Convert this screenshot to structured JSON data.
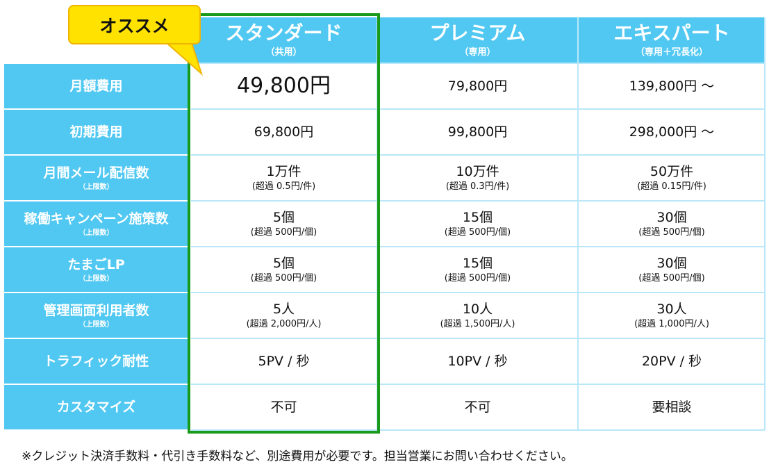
{
  "badge": {
    "label": "オススメ"
  },
  "plans": [
    {
      "name": "スタンダード",
      "sub": "（共用）"
    },
    {
      "name": "プレミアム",
      "sub": "（専用）"
    },
    {
      "name": "エキスパート",
      "sub": "（専用＋冗長化）"
    }
  ],
  "rows": [
    {
      "label": "月額費用",
      "sub": "",
      "cells": [
        {
          "main": "49,800円",
          "sub": ""
        },
        {
          "main": "79,800円",
          "sub": ""
        },
        {
          "main": "139,800円",
          "sub": "",
          "suffix": "～"
        }
      ]
    },
    {
      "label": "初期費用",
      "sub": "",
      "cells": [
        {
          "main": "69,800円",
          "sub": ""
        },
        {
          "main": "99,800円",
          "sub": ""
        },
        {
          "main": "298,000円",
          "sub": "",
          "suffix": "～"
        }
      ]
    },
    {
      "label": "月間メール配信数",
      "sub": "（上限数）",
      "cells": [
        {
          "main": "1万件",
          "sub": "(超過 0.5円/件)"
        },
        {
          "main": "10万件",
          "sub": "(超過 0.3円/件)"
        },
        {
          "main": "50万件",
          "sub": "(超過 0.15円/件)"
        }
      ]
    },
    {
      "label": "稼働キャンペーン施策数",
      "sub": "（上限数）",
      "cells": [
        {
          "main": "5個",
          "sub": "(超過 500円/個)"
        },
        {
          "main": "15個",
          "sub": "(超過 500円/個)"
        },
        {
          "main": "30個",
          "sub": "(超過 500円/個)"
        }
      ]
    },
    {
      "label": "たまごLP",
      "sub": "（上限数）",
      "cells": [
        {
          "main": "5個",
          "sub": "(超過 500円/個)"
        },
        {
          "main": "15個",
          "sub": "(超過 500円/個)"
        },
        {
          "main": "30個",
          "sub": "(超過 500円/個)"
        }
      ]
    },
    {
      "label": "管理画面利用者数",
      "sub": "（上限数）",
      "cells": [
        {
          "main": "5人",
          "sub": "(超過 2,000円/人)"
        },
        {
          "main": "10人",
          "sub": "(超過 1,500円/人)"
        },
        {
          "main": "30人",
          "sub": "(超過 1,000円/人)"
        }
      ]
    },
    {
      "label": "トラフィック耐性",
      "sub": "",
      "cells": [
        {
          "main": "5PV / 秒",
          "sub": ""
        },
        {
          "main": "10PV / 秒",
          "sub": ""
        },
        {
          "main": "20PV / 秒",
          "sub": ""
        }
      ]
    },
    {
      "label": "カスタマイズ",
      "sub": "",
      "cells": [
        {
          "main": "不可",
          "sub": ""
        },
        {
          "main": "不可",
          "sub": ""
        },
        {
          "main": "要相談",
          "sub": ""
        }
      ]
    }
  ],
  "footnote": "※クレジット決済手数料・代引き手数料など、別途費用が必要です。担当営業にお問い合わせください。",
  "colors": {
    "header": "#51c8f2",
    "recommend_border": "#1a9a1a",
    "badge": "#ffe200",
    "grid_line": "#b9e7f8"
  }
}
